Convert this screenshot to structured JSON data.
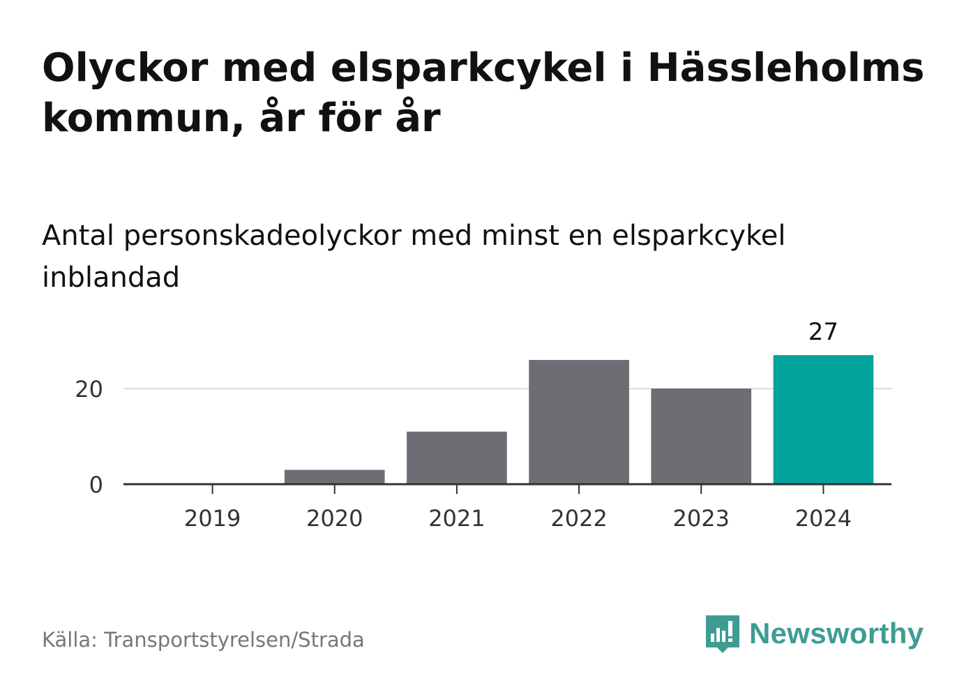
{
  "title": "Olyckor med elsparkcykel i Hässleholms kommun, år för år",
  "subtitle": "Antal personskadeolyckor med minst en elsparkcykel inblandad",
  "source": "Källa: Transportstyrelsen/Strada",
  "brand": {
    "name": "Newsworthy",
    "icon": "newsworthy-logo-icon"
  },
  "colors": {
    "bar": "#6e6d73",
    "highlight": "#00a49a",
    "grid": "#dddddd",
    "axis": "#333333",
    "brand": "#3e9c93"
  },
  "chart_data": {
    "type": "bar",
    "categories": [
      "2019",
      "2020",
      "2021",
      "2022",
      "2023",
      "2024"
    ],
    "values": [
      0,
      3,
      11,
      26,
      20,
      27
    ],
    "highlight_index": 5,
    "data_labels": [
      {
        "index": 5,
        "text": "27"
      }
    ],
    "yticks": [
      0,
      20
    ],
    "ylim": [
      0,
      27
    ],
    "grid": true,
    "xlabel": "",
    "ylabel": ""
  }
}
